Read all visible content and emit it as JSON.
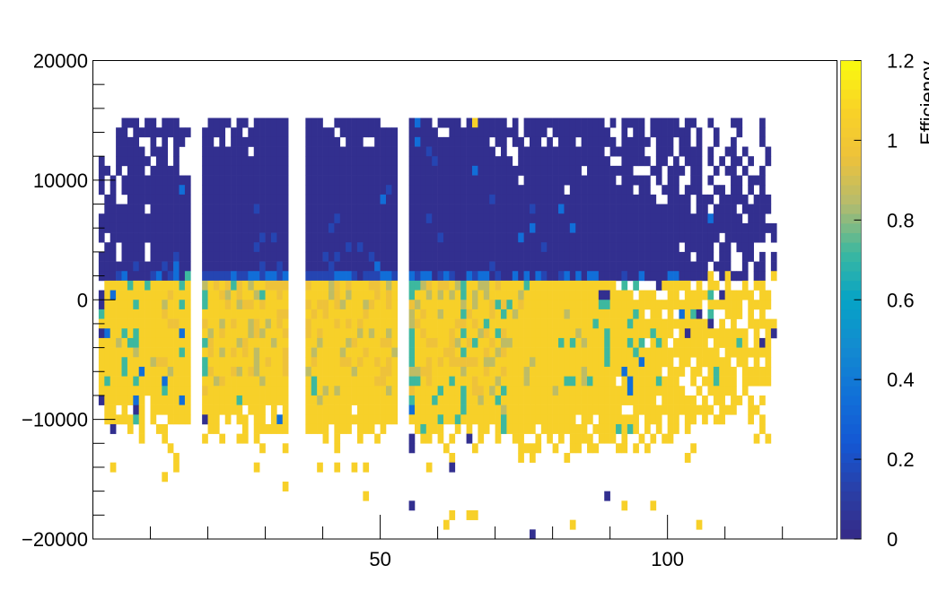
{
  "chart_data": {
    "type": "heatmap",
    "title": "",
    "xlabel": "",
    "ylabel": "",
    "xlim": [
      0,
      129.5
    ],
    "ylim": [
      -20000,
      20000
    ],
    "x_bin_width": 1,
    "y_bin_width": 800,
    "x_ticks": [
      50,
      100
    ],
    "x_tick_labels": [
      "50",
      "100"
    ],
    "y_ticks": [
      -20000,
      -10000,
      0,
      10000,
      20000
    ],
    "y_tick_labels": [
      "−20000",
      "−10000",
      "0",
      "10000",
      "20000"
    ],
    "colorbar": {
      "title": "Efficiency",
      "range": [
        0,
        1.2
      ],
      "ticks": [
        0,
        0.2,
        0.4,
        0.6,
        0.8,
        1,
        1.2
      ],
      "tick_labels": [
        "0",
        "0.2",
        "0.4",
        "0.6",
        "0.8",
        "1",
        "1.2"
      ],
      "palette": [
        "#352a87",
        "#2a3fa6",
        "#1457d4",
        "#1170d8",
        "#138bd0",
        "#06a3c6",
        "#3db89f",
        "#b4bb6e",
        "#eec23a",
        "#f9d326",
        "#f9fb0e"
      ]
    },
    "grid": false,
    "cell_levels": {
      ".": null,
      "D": 0.03,
      "d": 0.15,
      "b": 0.35,
      "c": 0.72,
      "t": 0.86,
      "g": 0.96,
      "Y": 1.06
    },
    "segment_x_start": [
      1,
      19,
      37,
      55
    ],
    "rows": [
      {
        "y": 14400,
        "cells": [
          "....DDD.DD.DDD..",
          ".DDDD.DD.DDDDDD",
          "DDD..DDDDDDDD...",
          "DbDD.DDDD.DYDDDDD.D.DDDDDDDDDDDDDD.D.DDDD.DDDDD.DD..D...DD...D.."
        ]
      },
      {
        "y": 13600,
        "cells": [
          "...DD.DDDDDDDDDD",
          "DDDD.DD.DDDDDDD",
          "DDDDD.DDDDDDDDDD",
          "DDDDD..DDDDDDDDDDDD.DDDD.DDDDDDDDDD..D.DD.DDDDDDD.D..D...D...D.."
        ]
      },
      {
        "y": 12800,
        "cells": [
          "...DDDD..D.D.DD.",
          "DD.D.DDDDDDDDDD",
          "DDDDDD.DDD..DDDD",
          "DbDDDDDDDDDDDD.DD.DD.DD.D.DDD.DDDDDD.DDDDD.DDD.DD.D..D..D....D.."
        ]
      },
      {
        "y": 12000,
        "cells": [
          "...DDDDD.DDD.D..",
          "DDDDDDDD.DDDDDD",
          "DDDDDDDDDDDDDDDD",
          "DDDdDDDDDDDDDDD.D..DDDDDDDDDDDDDDD.DDDDDD..DDD.DDDD.D..DD.D...D."
        ]
      },
      {
        "y": 11200,
        "cells": [
          "D..DDDDDD.DD.D..",
          "DDDDDDDDDDDDDDD",
          "DDDDDDDDDDDDDDDD",
          "DDDDdDDDDDDDDDDDDD.DDDDDDDDDDDDDDDD..DDDDD.DD.D.DDD.D.D.DD.D..D"
        ]
      },
      {
        "y": 10400,
        "cells": [
          "DD.D.DDD.DDDDD..",
          "DDDDDDDDDDDDDDD",
          "DDDDDDDDDDDDDDDD",
          "DDDDDDDDDDDbDDDDDDDDDDDDDDDDDD.DDDDDDDD...DD.DDD.DD..D.DD.D..D.."
        ]
      },
      {
        "y": 9600,
        "cells": [
          "D.D.DDDDDDDDDDDD",
          "DDDDDDDDDDDDDDD",
          "DDDDDDDDDDDDDDDD",
          "DDDDDDDDDDDDDDDDDDD.DDDDDDDDDDDDDDDD.DDDDD.D.DD..DD.D...DD.DDD."
        ]
      },
      {
        "y": 8800,
        "cells": [
          "D.D.DDDDDDDDDDbD",
          "DDDDDDDDDDDDDDD",
          "DDDDDDDDDDDDDDdD",
          "DDDDDDDDDDDDDDDDDDDDDDDDDDD.DDDDDDDDDDD.DD..DDD.DDD..DD.DD.D.D."
        ]
      },
      {
        "y": 8000,
        "cells": [
          ".DD..DDDDDDDDDDD",
          "DDDDDDDDDDDDDDD",
          "DDDDDDDDDDDDDbDD",
          "DDDDDDDDDDDDDDdDDDDDDDDDDDDDDDDDDDDDDDDDDDD..DDDD.DDD.DDDDD.DDD."
        ]
      },
      {
        "y": 7200,
        "cells": [
          ".DDDDDDD.DDDDDDD",
          "DDDDDDDDDdDDDDD",
          "DDDDDDDDDDDDDDDD",
          "DDDDDDDDDDDDDDDDDDDDDdDDDDbDDDDDDDDDDDDDDDDDDDDDD.DD.DDDD.DDDDD."
        ]
      },
      {
        "y": 6400,
        "cells": [
          "DDDDDDDDDDDDDDDD",
          "DDDDDDDDDDDDDDD",
          "DDDDDdDDDDDDDDDD",
          "DDDdDDDDDDDDDDDDDDDDDDDDDDDDDDDDDDDDDDDDDDDDDDDDDDDDbDDDDD.DDD"
        ]
      },
      {
        "y": 5600,
        "cells": [
          "DDDDDDDDDDDDDDDD",
          "DDDDDDDDDDDDDDD",
          "DDDDdDDDDDDDDDDD",
          "DDDDDDDDDDDDDDDDDDDDDbDDDDDDbDDDDDDDDDDDDDDDDDDDDDDDDDDDDDDDDDDD"
        ]
      },
      {
        "y": 4800,
        "cells": [
          "D.DDDDDDDDDDDDDD",
          "DDDDDDDDDDdDdDD",
          "DDDDDDDDDDDDDDDD",
          "DDDDDdDDDDDDDDDDDDDbDDDDDDDDDDDDDDDDDDDDDDDDDDDDDDDDDD.DDDDDDD.D"
        ]
      },
      {
        "y": 4000,
        "cells": [
          ".DD.DDDD.DDDDDDD",
          "DDDDDDDDDdDDDDD",
          "DDDDDDDdDdDDDDDD",
          "DDDDDDDDDDDDDDDDDDDDDDDdDDDDDDDDDDDDDDDDDDDDDDD.DDDDD.DD.DDD"
        ]
      },
      {
        "y": 3200,
        "cells": [
          "DDD.DDDD.DDDDdDD",
          "DDDDDDDDDDDDDDD",
          "DDDdDdDDDDDdDDDD",
          "DDDDDDDDDDDDDDDDDDDDDDDDDDDDDDDDDDDDDDDDDDDDDDDDD.DDD.DD..DD.D.D"
        ]
      },
      {
        "y": 2400,
        "cells": [
          "DDDDDDdDDDDdDbDD",
          "DDDDDDDDDDdDDdD",
          "DDDDdDDDDDDDbDDD",
          "DDDDDDDDDDDDDDdDDDDDDDDDDDDDDDDDDDDDDDDDDDDDDDDDDDDD.DDD..D.DD.D"
        ]
      },
      {
        "y": 1600,
        "cells": [
          "DDDdbDDDDdbDdbDc",
          "dddddbddbbdbbdb",
          "dddddbbbdDdddbbd",
          "bdbbDdbdDDbdbbDdDDbDbDbdDDdbDbDbbDDDDdDDbDDDDbbDDDDDY.DYDDD.DD.Y"
        ]
      },
      {
        "y": 800,
        "cells": [
          ".YYYYcYYcYYYYYcY",
          "tYgYgcgYtYYgggg",
          "gYYYtgYgYYYggYtY",
          "cctgYggYtcYYttYgYYYYcYYYYYYYYYYYYYYY.c.c...DYYYYY.Y.YY.Y..Y.YY."
        ]
      },
      {
        "y": 0,
        "cells": [
          "DYbYYYYYYYYYgYYY",
          "cYYgtYgYYtcYYgY",
          "YYYYtgYtYYYYgYgY",
          "cYYtYtYtYcYtYtYYYYYtYYYYYYYYYYYYYDDYYYY.YYY..YY.YYYYc.DYYYYY.YY."
        ]
      },
      {
        "y": -800,
        "cells": [
          "DYYYYYcYYYYtYYcY",
          "cYYYgYtggYgYYYY",
          "gYggYgtYYYtgYYgY",
          "gtYYYYYYYtYtYYgcgcYgYYYYYYYYYYYYYccYYYYYYYYYYYYYYYY.YYYYYY.YYYY."
        ]
      },
      {
        "y": -1600,
        "cells": [
          "cYYYYYYYYYYgYYYY",
          "YYYYYYYYYYYYYgg",
          "YgYgYYYYYYgYYYYY",
          "tYgYYtYYYcgYYYgYcYtYYYYYYYYtYYYYYYYYYYYcY.YY.Y.bYcD.c..YYY.Y.Y."
        ]
      },
      {
        "y": -2400,
        "cells": [
          "YYYYYYYYYYYYggYY",
          "gYYtYgYYtgYtYgY",
          "gYYYYgYgYgYYYYYY",
          "tgYYYYYYggYgYcYYYYYYYYYYYYYYYYYYcYYYYYcYYYYYYYYYYYYYD.Y.Y..YYYYY."
        ]
      },
      {
        "y": -3200,
        "cells": [
          "DbYYcYcYYYYYYYbY",
          "YtYgYYYYtgtYYYg",
          "gYgYYYYYYtYtYYtY",
          "cYgYYYYgYcYYtgYcgYYYYYYYYYYYYtYYYYcYYYYYYYcYYY.YDYYYYYYYYYY.Y.YD"
        ]
      },
      {
        "y": -4000,
        "cells": [
          "YYYtYccYYYYYYYYY",
          "cgYYYYtgYYYYtYY",
          "YYtYYYYtgYYYYggY",
          "cYYggYYgtYgcYYgYttYYYYYYYYcYcYtYYYcYYYcYc.YcY.YYYYYY.YYYYcY.YDY."
        ]
      },
      {
        "y": -4800,
        "cells": [
          "YYYYYYtYYYYYYYcY",
          "YgYtYgYgYtYYYYg",
          "YtYYYYtYYYgYYYYt",
          "cYYYYYggYcYYYgYtgYYYYYYYYYYYYYYYYYcYYYYcYYYYYYYYYYYYYY.YYYYYYYY."
        ]
      },
      {
        "y": -5600,
        "cells": [
          "YYYYcYYYYtggYYYY",
          "cYYYYYYYYtYgYYg",
          "YgYYYYggYgYYgYgY",
          "cYYgYgYgggggYttYYYYYYtYYYYYYYYYYYYcYYYYYbYYYYY.YY.YYYYYY.YY.Y.Y."
        ]
      },
      {
        "y": -6400,
        "cells": [
          "YYYYcYYbYYYYtYYY",
          "cgYYYgtYgtYYYYg",
          "tYYYYYYYtYYYYggY",
          "ttggYYYYYtYYYgYYgYYYtYYYYYYYYYtYYYYYYbYYYYYY.YYY.YY.YcYYY.YYYYY."
        ]
      },
      {
        "y": -7200,
        "cells": [
          "YcYYYYcYYYYbYYYY",
          "YYtgYYYYYYtYYYY",
          "YcYYYYYYYYYYggYY",
          "ccYgYYYcYYYgYYYtYYYYtYYYYYYccYtcYYYY.YbYYYYcYYY..Y.YYcYYY.YYYYY."
        ]
      },
      {
        "y": -8000,
        "cells": [
          "YYYYYYYYYYYcYYYY",
          "gYYYYYYYYYYYYYY",
          "YcYtYtYYYYYYYYtY",
          "gYYYYcYYYcYggYtYcYYYYYYYYtYYYYYYYYYYYYbYYYYYYYYY..Y.YYYYY.Y....."
        ]
      },
      {
        "y": -8800,
        "cells": [
          "DYYYYYbY.YYYYYbY",
          "YYYYYYcYYYYYYYY",
          "YYtYYYYYYYYYYYYY",
          "cYYYcYYYYcYYtYYcYYYYYYYYYYYYYYYYYYYYYYYYYYY.YYYYYY.Y.YY.YY.Y.Y.."
        ]
      },
      {
        "y": -9600,
        "cells": [
          ".YY.Y.DY.YYYYYYY",
          "YYYYYYY.YYY.Y.Y",
          "YYYYYYYY.YYYYYYY",
          "bYYYYYYYYcYYYYYYtYYYYYYYYYYYYYYYYYYYY..YYYYYYYYYYYYYY.YYY..YY..."
        ]
      },
      {
        "y": -10400,
        "cells": [
          ".YYYYYcY.Y..YYYY",
          "DYY.Y.YY.YY.YbY",
          "YYYYYYYYYYYYYYYY",
          "YYYYYcYYcYYYYYYYcYYYYYYYYYYYY.YY.YYYYYYY.YYY.YY.YY.Y.YY....Y.Y.."
        ]
      },
      {
        "y": -11200,
        "cells": [
          "..D..Y.Y..YY....",
          ".YY....Y.YYYYYY",
          "YYYY.YYY.YYY.Y..",
          ".YcYYY..Y.Y.YY.YcYYYYY.YYYYYYYY.YYYYcYcY.Y.Y.YY.Y............Y.."
        ]
      },
      {
        "y": -12000,
        "cells": [
          ".......Y...Y....",
          "Y..Y..YY.Y.....",
          "...Y.Y...Y..Y...",
          "D.YY.Y.Y..D.Y..Y..YY..Y.Y.Y.YYYY.YYY.Y..Y.Y.YY..............Y.Y."
        ]
      },
      {
        "y": -12800,
        "cells": [
          "............Y...",
          "..........Y...Y",
          ".....Y..........",
          "D.....Y....Y.......YYYY..Y..YY.YY...YY.Y.Y.......Y.............."
        ]
      },
      {
        "y": -13600,
        "cells": [
          ".............Y..",
          "...............",
          "................",
          ".......Y...........Y.Y.....Y....................Y..........."
        ]
      },
      {
        "y": -14400,
        "cells": [
          "..Y..........Y..",
          ".........Y.....",
          "..Y..Y..Y.Y.....",
          "...Y...D........................................................"
        ]
      },
      {
        "y": -15200,
        "cells": [
          "...........Y....",
          "...............",
          "................",
          "................................................................"
        ]
      },
      {
        "y": -16000,
        "cells": [
          "................",
          "..............Y",
          "................",
          "................................................................"
        ]
      },
      {
        "y": -16800,
        "cells": [
          "................",
          "...............",
          "..........Y.....",
          "..................................D............................."
        ]
      },
      {
        "y": -17600,
        "cells": [
          "................",
          "...............",
          "................",
          "D....................................Y....Y....................."
        ]
      },
      {
        "y": -18400,
        "cells": [
          "................",
          "...............",
          "................",
          ".......Y..YY...................................................."
        ]
      },
      {
        "y": -19200,
        "cells": [
          "................",
          "...............",
          "................",
          "......Y.....................Y.....................Y............."
        ]
      },
      {
        "y": -20000,
        "cells": [
          "................",
          "...............",
          "................",
          ".....................D.........................................."
        ]
      }
    ]
  }
}
